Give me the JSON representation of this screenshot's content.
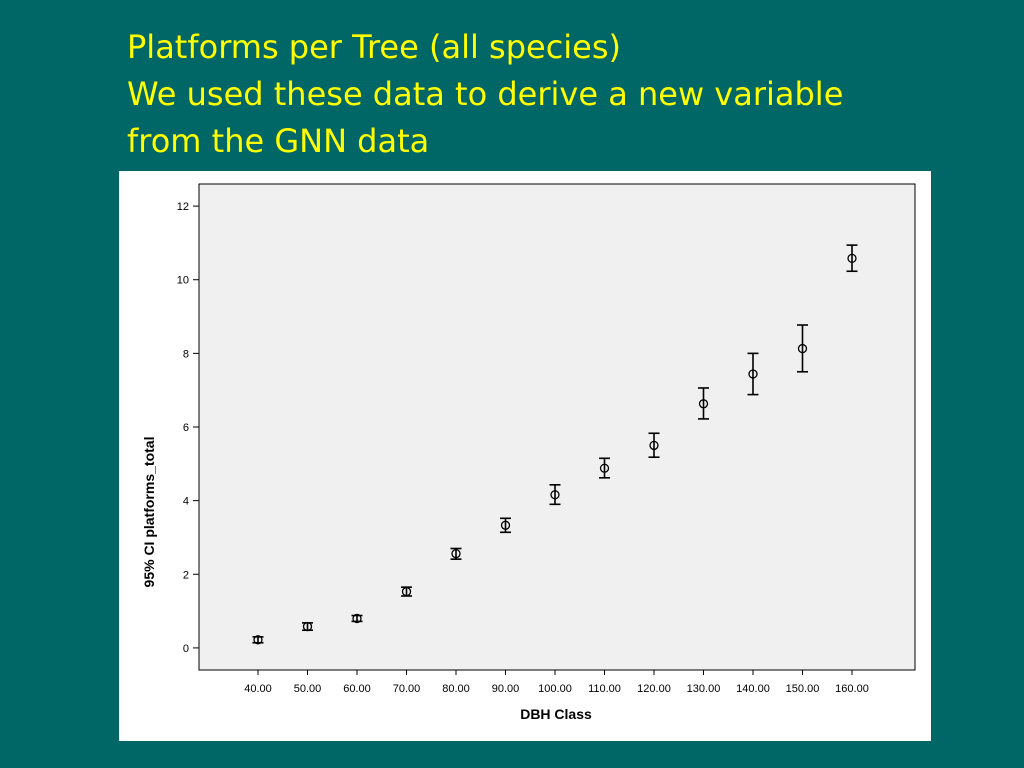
{
  "slide": {
    "title_lines": [
      "Platforms per Tree (all species)",
      "We used these data to derive a new variable",
      "from the GNN data"
    ]
  },
  "colors": {
    "background": "#006666",
    "title": "#ffff00",
    "plot_area": "#f0f0f0",
    "marks": "#000000"
  },
  "chart_data": {
    "type": "scatter",
    "title": "",
    "xlabel": "DBH Class",
    "ylabel": "95% CI platforms_total",
    "categories": [
      "40.00",
      "50.00",
      "60.00",
      "70.00",
      "80.00",
      "90.00",
      "100.00",
      "110.00",
      "120.00",
      "130.00",
      "140.00",
      "150.00",
      "160.00"
    ],
    "series": [
      {
        "mean": [
          0.22,
          0.58,
          0.8,
          1.53,
          2.56,
          3.33,
          4.16,
          4.88,
          5.5,
          6.63,
          7.44,
          8.13,
          10.58
        ],
        "lower": [
          0.14,
          0.48,
          0.72,
          1.41,
          2.41,
          3.14,
          3.9,
          4.62,
          5.18,
          6.22,
          6.88,
          7.5,
          10.23
        ],
        "upper": [
          0.3,
          0.68,
          0.88,
          1.65,
          2.7,
          3.52,
          4.43,
          5.15,
          5.83,
          7.06,
          8.0,
          8.77,
          10.94
        ]
      }
    ],
    "ylim": [
      -0.6,
      12.6
    ],
    "yticks": [
      0,
      2,
      4,
      6,
      8,
      10,
      12
    ],
    "grid": false,
    "legend": "none"
  }
}
